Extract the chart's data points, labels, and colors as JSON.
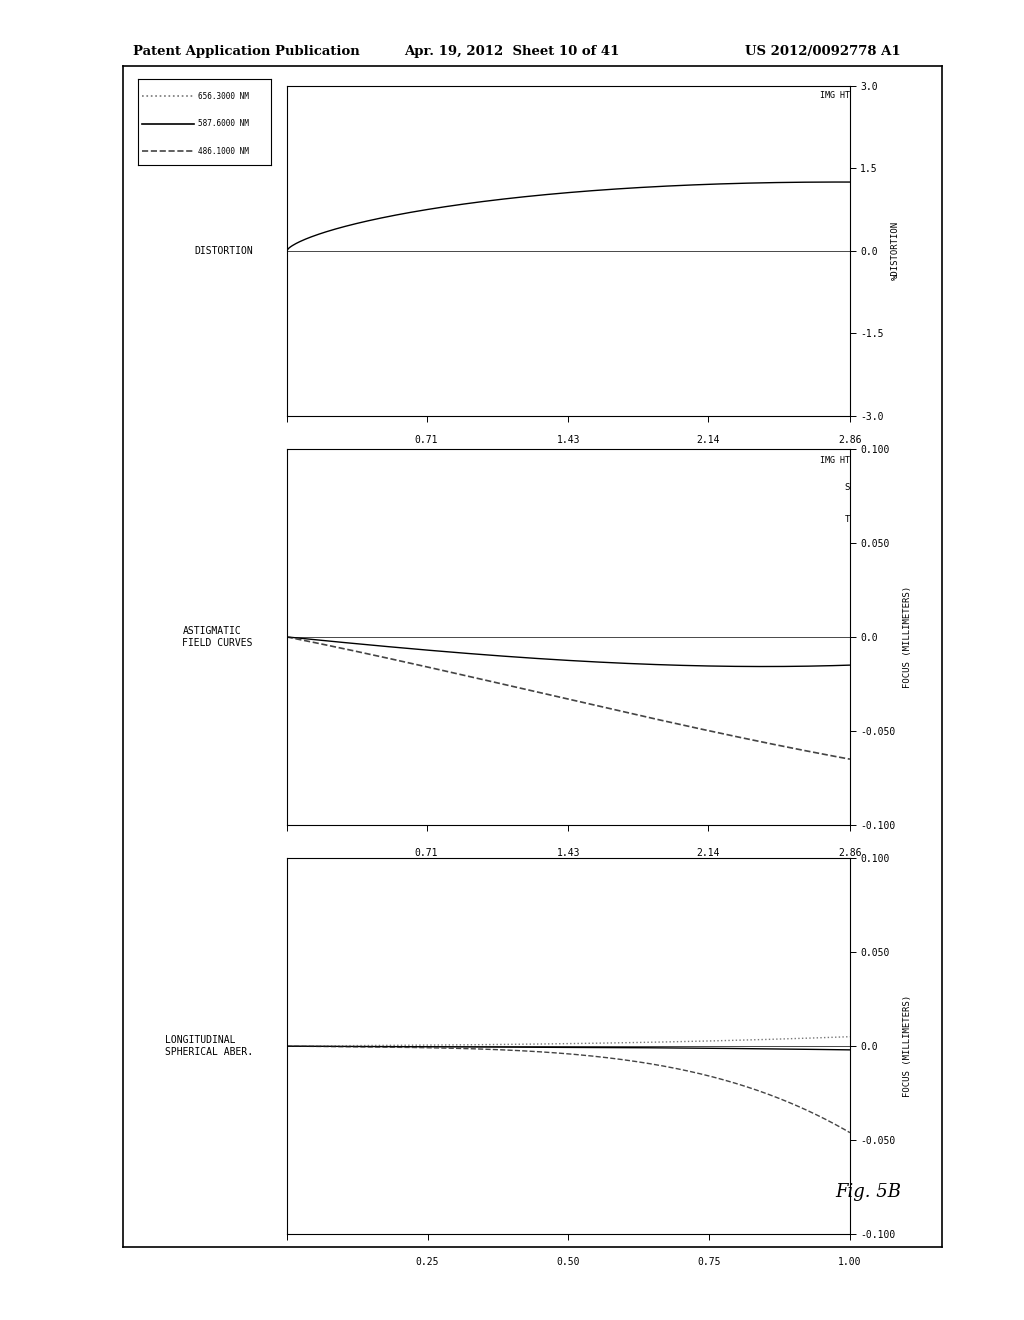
{
  "title_left": "Patent Application Publication",
  "title_center": "Apr. 19, 2012  Sheet 10 of 41",
  "title_right": "US 2012/0092778 A1",
  "fig_label": "Fig. 5B",
  "legend_labels": [
    "656.3000 NM",
    "587.6000 NM",
    "486.1000 NM"
  ],
  "background_color": "#ffffff",
  "line_color_solid": "#000000",
  "line_color_dashed": "#444444",
  "line_color_dotted": "#777777",
  "lsa_ylim": [
    -0.1,
    0.1
  ],
  "lsa_yticks": [
    -0.1,
    -0.05,
    0.0,
    0.05,
    0.1
  ],
  "lsa_ytick_labels": [
    "-0.100",
    "-0.050",
    "0.0",
    "0.050",
    "0.100"
  ],
  "lsa_xlim": [
    0.0,
    1.0
  ],
  "lsa_xticks": [
    0.0,
    0.25,
    0.5,
    0.75,
    1.0
  ],
  "lsa_xtick_labels": [
    "",
    "0.25",
    "0.50",
    "0.75",
    "1.00"
  ],
  "astig_ylim": [
    -0.1,
    0.1
  ],
  "astig_yticks": [
    -0.1,
    -0.05,
    0.0,
    0.05,
    0.1
  ],
  "astig_ytick_labels": [
    "-0.100",
    "-0.050",
    "0.0",
    "0.050",
    "0.100"
  ],
  "astig_xlim": [
    0.0,
    2.86
  ],
  "astig_xticks": [
    0.0,
    0.71,
    1.43,
    2.14,
    2.86
  ],
  "astig_xtick_labels": [
    "",
    "0.71",
    "1.43",
    "2.14",
    "2.86"
  ],
  "dist_ylim": [
    -3.0,
    3.0
  ],
  "dist_yticks": [
    -3.0,
    -1.5,
    0.0,
    1.5,
    3.0
  ],
  "dist_ytick_labels": [
    "-3.0",
    "-1.5",
    "0.0",
    "1.5",
    "3.0"
  ],
  "dist_xlim": [
    0.0,
    2.86
  ],
  "dist_xticks": [
    0.0,
    0.71,
    1.43,
    2.14,
    2.86
  ],
  "dist_xtick_labels": [
    "",
    "0.71",
    "1.43",
    "2.14",
    "2.86"
  ]
}
